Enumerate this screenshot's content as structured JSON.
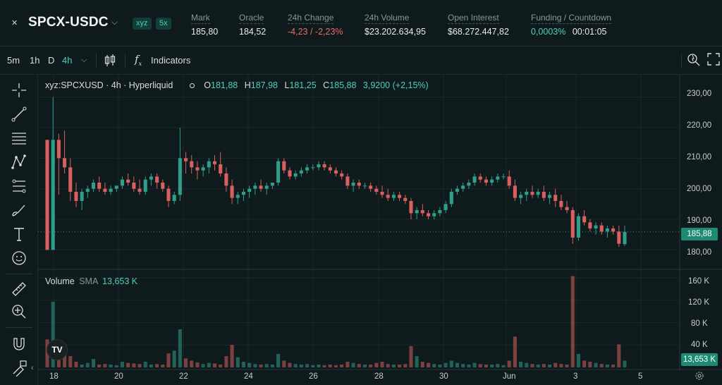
{
  "header": {
    "pair_icon": "arrows-cross-icon",
    "pair": "SPCX-USDC",
    "badges": [
      "xyz",
      "5x"
    ],
    "stats": [
      {
        "label": "Mark",
        "value": "185,80"
      },
      {
        "label": "Oracle",
        "value": "184,52"
      },
      {
        "label": "24h Change",
        "value": "-4,23 / -2,23%"
      },
      {
        "label": "24h Volume",
        "value": "$23.202.634,95"
      },
      {
        "label": "Open Interest",
        "value": "$68.272.447,82"
      },
      {
        "label": "Funding / Countdown",
        "value_a": "0,0003%",
        "value_b": "00:01:05"
      }
    ]
  },
  "toolbar": {
    "intervals": [
      "5m",
      "1h",
      "D",
      "4h"
    ],
    "active_interval": "4h",
    "indicators_label": "Indicators"
  },
  "legend": {
    "symbol": "xyz:SPCXUSD · 4h · Hyperliquid",
    "o_label": "O",
    "o": "181,88",
    "h_label": "H",
    "h": "187,98",
    "l_label": "L",
    "l": "181,25",
    "c_label": "C",
    "c": "185,88",
    "change": "3,9200 (+2,15%)"
  },
  "volume_legend": {
    "name": "Volume",
    "sma_label": "SMA",
    "sma_value": "13,653 K"
  },
  "price_axis": [
    "230,00",
    "220,00",
    "210,00",
    "200,00",
    "190,00",
    "185,88",
    "180,00"
  ],
  "volume_axis": [
    "160 K",
    "120 K",
    "80 K",
    "40 K",
    "13,653 K"
  ],
  "time_axis": [
    "18",
    "20",
    "22",
    "24",
    "26",
    "28",
    "30",
    "Jun",
    "3",
    "5"
  ],
  "colors": {
    "up": "#2f9e8a",
    "down": "#d9605f",
    "accent": "#4fd1b6",
    "background": "#0f1a1c"
  },
  "chart_data": {
    "type": "candlestick",
    "ylim": [
      175,
      235
    ],
    "volume_ylim": [
      0,
      170000
    ],
    "current_price": 185.88,
    "candles": [
      [
        216,
        216,
        180,
        180,
        50000
      ],
      [
        180,
        230,
        180,
        216,
        117000
      ],
      [
        216,
        218,
        198,
        210,
        40000
      ],
      [
        210,
        219,
        205,
        207,
        33000
      ],
      [
        207,
        210,
        196,
        199,
        20000
      ],
      [
        199,
        202,
        194,
        196,
        10000
      ],
      [
        196,
        200,
        193,
        199,
        5000
      ],
      [
        199,
        201,
        197,
        200,
        8000
      ],
      [
        200,
        203,
        199,
        202,
        15000
      ],
      [
        202,
        204,
        199,
        200,
        5000
      ],
      [
        200,
        202,
        198,
        199,
        6000
      ],
      [
        199,
        201,
        198,
        200,
        5000
      ],
      [
        200,
        201,
        199,
        201,
        4000
      ],
      [
        201,
        204,
        200,
        203,
        10000
      ],
      [
        203,
        205,
        201,
        202,
        8000
      ],
      [
        202,
        204,
        199,
        200,
        7000
      ],
      [
        200,
        203,
        198,
        199,
        6000
      ],
      [
        199,
        204,
        198,
        203,
        10000
      ],
      [
        203,
        205,
        201,
        204,
        5000
      ],
      [
        204,
        205,
        200,
        202,
        6000
      ],
      [
        202,
        203,
        199,
        200,
        5000
      ],
      [
        200,
        201,
        194,
        196,
        25000
      ],
      [
        196,
        199,
        195,
        198,
        30000
      ],
      [
        198,
        220,
        196,
        210,
        68000
      ],
      [
        210,
        212,
        205,
        209,
        16000
      ],
      [
        209,
        211,
        205,
        207,
        12000
      ],
      [
        207,
        209,
        203,
        206,
        9000
      ],
      [
        206,
        208,
        204,
        207,
        6000
      ],
      [
        207,
        210,
        205,
        209,
        8000
      ],
      [
        209,
        211,
        206,
        208,
        7000
      ],
      [
        208,
        212,
        204,
        205,
        5000
      ],
      [
        205,
        207,
        199,
        201,
        20000
      ],
      [
        201,
        203,
        195,
        197,
        40000
      ],
      [
        197,
        199,
        195,
        198,
        18000
      ],
      [
        198,
        200,
        196,
        199,
        10000
      ],
      [
        199,
        201,
        197,
        200,
        8000
      ],
      [
        200,
        202,
        198,
        201,
        6000
      ],
      [
        201,
        203,
        199,
        200,
        5000
      ],
      [
        200,
        202,
        198,
        201,
        6000
      ],
      [
        201,
        202,
        200,
        202,
        5000
      ],
      [
        202,
        210,
        201,
        209,
        24000
      ],
      [
        209,
        210,
        205,
        206,
        12000
      ],
      [
        206,
        207,
        203,
        204,
        8000
      ],
      [
        204,
        206,
        203,
        205,
        6000
      ],
      [
        205,
        207,
        204,
        206,
        5000
      ],
      [
        206,
        208,
        205,
        207,
        6000
      ],
      [
        207,
        208,
        206,
        207,
        4000
      ],
      [
        207,
        209,
        206,
        208,
        5000
      ],
      [
        208,
        209,
        206,
        207,
        4000
      ],
      [
        207,
        208,
        205,
        206,
        5000
      ],
      [
        206,
        207,
        204,
        205,
        4000
      ],
      [
        205,
        206,
        203,
        204,
        5000
      ],
      [
        204,
        205,
        200,
        201,
        10000
      ],
      [
        201,
        203,
        199,
        202,
        8000
      ],
      [
        202,
        203,
        200,
        201,
        6000
      ],
      [
        201,
        202,
        200,
        201,
        5000
      ],
      [
        201,
        202,
        199,
        200,
        5000
      ],
      [
        200,
        201,
        198,
        199,
        8000
      ],
      [
        199,
        201,
        197,
        198,
        10000
      ],
      [
        198,
        200,
        196,
        197,
        6000
      ],
      [
        197,
        199,
        196,
        198,
        5000
      ],
      [
        198,
        199,
        196,
        197,
        5000
      ],
      [
        197,
        198,
        195,
        196,
        6000
      ],
      [
        196,
        197,
        190,
        192,
        38000
      ],
      [
        192,
        194,
        190,
        193,
        20000
      ],
      [
        193,
        195,
        191,
        192,
        10000
      ],
      [
        192,
        193,
        190,
        191,
        8000
      ],
      [
        191,
        193,
        190,
        192,
        6000
      ],
      [
        192,
        194,
        191,
        193,
        5000
      ],
      [
        193,
        196,
        192,
        195,
        8000
      ],
      [
        195,
        200,
        194,
        199,
        12000
      ],
      [
        199,
        201,
        198,
        200,
        8000
      ],
      [
        200,
        202,
        199,
        201,
        6000
      ],
      [
        201,
        203,
        200,
        202,
        5000
      ],
      [
        202,
        205,
        201,
        204,
        8000
      ],
      [
        204,
        205,
        202,
        203,
        6000
      ],
      [
        203,
        204,
        201,
        202,
        5000
      ],
      [
        202,
        204,
        201,
        203,
        5000
      ],
      [
        203,
        205,
        202,
        204,
        6000
      ],
      [
        204,
        205,
        203,
        204,
        4000
      ],
      [
        204,
        206,
        200,
        201,
        12000
      ],
      [
        201,
        203,
        196,
        197,
        55000
      ],
      [
        197,
        199,
        195,
        198,
        10000
      ],
      [
        198,
        200,
        196,
        199,
        8000
      ],
      [
        199,
        201,
        197,
        198,
        6000
      ],
      [
        198,
        200,
        197,
        199,
        5000
      ],
      [
        199,
        201,
        196,
        197,
        6000
      ],
      [
        197,
        199,
        195,
        198,
        5000
      ],
      [
        198,
        200,
        194,
        196,
        8000
      ],
      [
        196,
        198,
        193,
        194,
        6000
      ],
      [
        194,
        196,
        192,
        193,
        5000
      ],
      [
        193,
        194,
        182,
        184,
        163000
      ],
      [
        184,
        192,
        183,
        191,
        24000
      ],
      [
        191,
        193,
        188,
        189,
        12000
      ],
      [
        189,
        190,
        186,
        187,
        10000
      ],
      [
        187,
        189,
        185,
        188,
        8000
      ],
      [
        188,
        189,
        185,
        186,
        6000
      ],
      [
        186,
        188,
        184,
        187,
        5000
      ],
      [
        187,
        188,
        185,
        186,
        5000
      ],
      [
        186,
        188,
        181,
        182,
        41000
      ],
      [
        181.88,
        187.98,
        181.25,
        185.88,
        12000
      ]
    ]
  }
}
